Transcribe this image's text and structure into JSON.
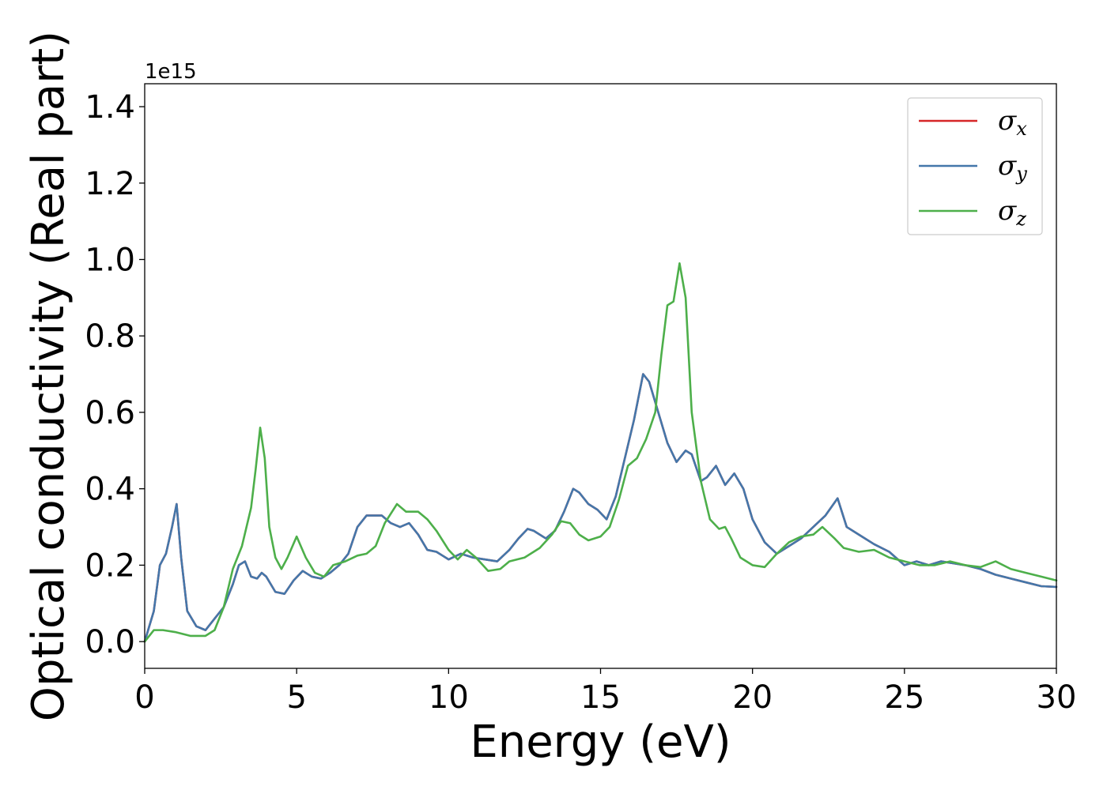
{
  "chart_data": {
    "type": "line",
    "title": "",
    "xlabel": "Energy (eV)",
    "ylabel": "Optical conductivity (Real part)",
    "y_offset_text": "1e15",
    "y_scale": 1000000000000000.0,
    "xlim": [
      0,
      30
    ],
    "ylim": [
      -0.07,
      1.46
    ],
    "xticks": [
      0,
      5,
      10,
      15,
      20,
      25,
      30
    ],
    "xtick_labels": [
      "0",
      "5",
      "10",
      "15",
      "20",
      "25",
      "30"
    ],
    "yticks": [
      0.0,
      0.2,
      0.4,
      0.6,
      0.8,
      1.0,
      1.2,
      1.4
    ],
    "ytick_labels": [
      "0.0",
      "0.2",
      "0.4",
      "0.6",
      "0.8",
      "1.0",
      "1.2",
      "1.4"
    ],
    "grid": false,
    "legend_position": "top-right",
    "series": [
      {
        "name": "σx",
        "symbol": "σ",
        "subscript": "x",
        "color": "#d62728",
        "x": [
          0,
          0.3,
          0.5,
          0.7,
          0.9,
          1.05,
          1.2,
          1.4,
          1.7,
          2.0,
          2.3,
          2.6,
          2.9,
          3.1,
          3.3,
          3.5,
          3.7,
          3.85,
          4.0,
          4.3,
          4.6,
          4.9,
          5.2,
          5.5,
          5.8,
          6.1,
          6.4,
          6.7,
          7.0,
          7.3,
          7.5,
          7.8,
          8.1,
          8.4,
          8.7,
          9.0,
          9.3,
          9.6,
          9.8,
          10.0,
          10.4,
          10.8,
          11.2,
          11.6,
          12.0,
          12.3,
          12.6,
          12.8,
          13.2,
          13.5,
          13.8,
          14.1,
          14.3,
          14.6,
          14.9,
          15.2,
          15.5,
          15.8,
          16.1,
          16.4,
          16.6,
          16.9,
          17.2,
          17.5,
          17.8,
          18.0,
          18.3,
          18.5,
          18.8,
          19.1,
          19.4,
          19.7,
          20.0,
          20.4,
          20.8,
          21.2,
          21.6,
          22.0,
          22.4,
          22.8,
          23.1,
          23.5,
          24.0,
          24.5,
          25.0,
          25.4,
          25.8,
          26.2,
          26.6,
          27.0,
          27.5,
          28.0,
          28.5,
          29.0,
          29.5,
          30.0
        ],
        "values": [
          0.0,
          0.08,
          0.2,
          0.23,
          0.3,
          0.36,
          0.22,
          0.08,
          0.04,
          0.03,
          0.06,
          0.09,
          0.15,
          0.2,
          0.21,
          0.17,
          0.165,
          0.18,
          0.17,
          0.13,
          0.125,
          0.16,
          0.185,
          0.17,
          0.165,
          0.18,
          0.2,
          0.23,
          0.3,
          0.33,
          0.33,
          0.33,
          0.31,
          0.3,
          0.31,
          0.28,
          0.24,
          0.235,
          0.225,
          0.215,
          0.23,
          0.22,
          0.215,
          0.21,
          0.24,
          0.27,
          0.295,
          0.29,
          0.27,
          0.29,
          0.34,
          0.4,
          0.39,
          0.36,
          0.345,
          0.32,
          0.38,
          0.48,
          0.58,
          0.7,
          0.68,
          0.6,
          0.52,
          0.47,
          0.5,
          0.49,
          0.42,
          0.43,
          0.46,
          0.41,
          0.44,
          0.4,
          0.32,
          0.26,
          0.23,
          0.25,
          0.27,
          0.3,
          0.33,
          0.375,
          0.3,
          0.28,
          0.255,
          0.235,
          0.2,
          0.21,
          0.2,
          0.21,
          0.205,
          0.2,
          0.19,
          0.175,
          0.165,
          0.155,
          0.145,
          0.143
        ]
      },
      {
        "name": "σy",
        "symbol": "σ",
        "subscript": "y",
        "color": "#4477aa",
        "x": [
          0,
          0.3,
          0.5,
          0.7,
          0.9,
          1.05,
          1.2,
          1.4,
          1.7,
          2.0,
          2.3,
          2.6,
          2.9,
          3.1,
          3.3,
          3.5,
          3.7,
          3.85,
          4.0,
          4.3,
          4.6,
          4.9,
          5.2,
          5.5,
          5.8,
          6.1,
          6.4,
          6.7,
          7.0,
          7.3,
          7.5,
          7.8,
          8.1,
          8.4,
          8.7,
          9.0,
          9.3,
          9.6,
          9.8,
          10.0,
          10.4,
          10.8,
          11.2,
          11.6,
          12.0,
          12.3,
          12.6,
          12.8,
          13.2,
          13.5,
          13.8,
          14.1,
          14.3,
          14.6,
          14.9,
          15.2,
          15.5,
          15.8,
          16.1,
          16.4,
          16.6,
          16.9,
          17.2,
          17.5,
          17.8,
          18.0,
          18.3,
          18.5,
          18.8,
          19.1,
          19.4,
          19.7,
          20.0,
          20.4,
          20.8,
          21.2,
          21.6,
          22.0,
          22.4,
          22.8,
          23.1,
          23.5,
          24.0,
          24.5,
          25.0,
          25.4,
          25.8,
          26.2,
          26.6,
          27.0,
          27.5,
          28.0,
          28.5,
          29.0,
          29.5,
          30.0
        ],
        "values": [
          0.0,
          0.08,
          0.2,
          0.23,
          0.3,
          0.36,
          0.22,
          0.08,
          0.04,
          0.03,
          0.06,
          0.09,
          0.15,
          0.2,
          0.21,
          0.17,
          0.165,
          0.18,
          0.17,
          0.13,
          0.125,
          0.16,
          0.185,
          0.17,
          0.165,
          0.18,
          0.2,
          0.23,
          0.3,
          0.33,
          0.33,
          0.33,
          0.31,
          0.3,
          0.31,
          0.28,
          0.24,
          0.235,
          0.225,
          0.215,
          0.23,
          0.22,
          0.215,
          0.21,
          0.24,
          0.27,
          0.295,
          0.29,
          0.27,
          0.29,
          0.34,
          0.4,
          0.39,
          0.36,
          0.345,
          0.32,
          0.38,
          0.48,
          0.58,
          0.7,
          0.68,
          0.6,
          0.52,
          0.47,
          0.5,
          0.49,
          0.42,
          0.43,
          0.46,
          0.41,
          0.44,
          0.4,
          0.32,
          0.26,
          0.23,
          0.25,
          0.27,
          0.3,
          0.33,
          0.375,
          0.3,
          0.28,
          0.255,
          0.235,
          0.2,
          0.21,
          0.2,
          0.21,
          0.205,
          0.2,
          0.19,
          0.175,
          0.165,
          0.155,
          0.145,
          0.143
        ]
      },
      {
        "name": "σz",
        "symbol": "σ",
        "subscript": "z",
        "color": "#4daf4a",
        "x": [
          0,
          0.3,
          0.6,
          1.0,
          1.5,
          2.0,
          2.3,
          2.6,
          2.9,
          3.2,
          3.5,
          3.65,
          3.8,
          3.95,
          4.1,
          4.3,
          4.5,
          4.7,
          5.0,
          5.3,
          5.6,
          5.9,
          6.2,
          6.6,
          7.0,
          7.3,
          7.6,
          7.9,
          8.3,
          8.6,
          9.0,
          9.3,
          9.6,
          10.0,
          10.3,
          10.6,
          10.9,
          11.3,
          11.7,
          12.0,
          12.5,
          13.0,
          13.4,
          13.7,
          14.0,
          14.3,
          14.6,
          15.0,
          15.3,
          15.6,
          15.9,
          16.2,
          16.5,
          16.8,
          17.0,
          17.2,
          17.4,
          17.6,
          17.8,
          18.0,
          18.3,
          18.6,
          18.9,
          19.1,
          19.3,
          19.6,
          20.0,
          20.4,
          20.8,
          21.2,
          21.6,
          22.0,
          22.3,
          22.7,
          23.0,
          23.5,
          24.0,
          24.5,
          25.0,
          25.5,
          26.0,
          26.5,
          27.0,
          27.5,
          28.0,
          28.5,
          29.0,
          29.5,
          30.0
        ],
        "values": [
          0.0,
          0.03,
          0.03,
          0.025,
          0.015,
          0.015,
          0.03,
          0.09,
          0.19,
          0.25,
          0.35,
          0.45,
          0.56,
          0.48,
          0.3,
          0.22,
          0.19,
          0.22,
          0.275,
          0.22,
          0.18,
          0.17,
          0.2,
          0.21,
          0.225,
          0.23,
          0.25,
          0.31,
          0.36,
          0.34,
          0.34,
          0.32,
          0.29,
          0.24,
          0.215,
          0.24,
          0.22,
          0.185,
          0.19,
          0.21,
          0.22,
          0.245,
          0.28,
          0.315,
          0.31,
          0.28,
          0.265,
          0.275,
          0.3,
          0.37,
          0.46,
          0.48,
          0.53,
          0.6,
          0.75,
          0.88,
          0.89,
          0.99,
          0.9,
          0.6,
          0.42,
          0.32,
          0.295,
          0.3,
          0.27,
          0.22,
          0.2,
          0.195,
          0.23,
          0.26,
          0.275,
          0.28,
          0.3,
          0.27,
          0.245,
          0.235,
          0.24,
          0.22,
          0.21,
          0.2,
          0.2,
          0.21,
          0.2,
          0.195,
          0.21,
          0.19,
          0.18,
          0.17,
          0.16
        ]
      }
    ]
  }
}
